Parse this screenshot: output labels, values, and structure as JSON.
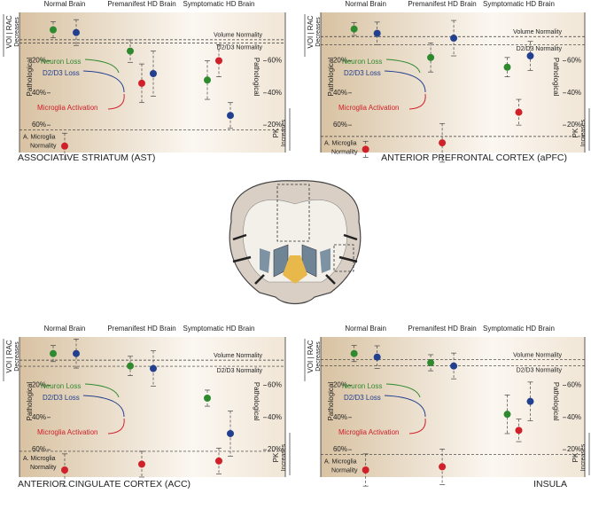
{
  "chart_data": [
    {
      "type": "dot",
      "title": "ASSOCIATIVE STRIATUM (AST)",
      "categories": [
        "Normal Brain",
        "Premanifest HD Brain",
        "Symptomatic HD Brain"
      ],
      "series": [
        {
          "name": "Neuron Loss",
          "color": "#2f8a2f",
          "values": [
            0.8,
            14,
            32
          ],
          "errors": [
            5,
            7,
            12
          ]
        },
        {
          "name": "D2/D3 Loss",
          "color": "#22408f",
          "values": [
            2.5,
            28,
            54
          ],
          "errors": [
            8,
            14,
            8
          ]
        },
        {
          "name": "Microglia Activation",
          "color": "#d0202a",
          "values": [
            73,
            34,
            20
          ],
          "errors": [
            8,
            12,
            10
          ]
        }
      ],
      "reference_lines": [
        {
          "label_lines": [
            "Volume Normality"
          ],
          "value": 7
        },
        {
          "label_lines": [
            "D2/D3 Normality"
          ],
          "value": 9
        },
        {
          "label_lines": [
            "A. Microglia",
            "Normality"
          ],
          "value": 63
        }
      ],
      "ylim": [
        -10,
        77
      ],
      "yticks": [
        {
          "value": 20,
          "label": "20%"
        },
        {
          "value": 40,
          "label": "40%"
        },
        {
          "value": 60,
          "label": "60%"
        }
      ],
      "y2lim": [
        90,
        3
      ],
      "y2ticks": [
        {
          "value": 60,
          "label": "60%"
        },
        {
          "value": 40,
          "label": "40%"
        },
        {
          "value": 20,
          "label": "20%"
        }
      ],
      "left_axis_label": "VOI | RAC",
      "left_axis_sublabel": "Decreases",
      "right_axis_label": "PK",
      "right_axis_sublabel": "Increases",
      "region_label": "Pathological"
    },
    {
      "type": "dot",
      "title": "ANTERIOR PREFRONTAL CORTEX (aPFC)",
      "categories": [
        "Normal Brain",
        "Premanifest HD Brain",
        "Symptomatic HD Brain"
      ],
      "series": [
        {
          "name": "Neuron Loss",
          "color": "#2f8a2f",
          "values": [
            0.3,
            18,
            24
          ],
          "errors": [
            4,
            9,
            6
          ]
        },
        {
          "name": "D2/D3 Loss",
          "color": "#22408f",
          "values": [
            3,
            6,
            17
          ],
          "errors": [
            7,
            11,
            9
          ]
        },
        {
          "name": "Microglia Activation",
          "color": "#d0202a",
          "values": [
            75,
            71,
            52
          ],
          "errors": [
            5,
            12,
            8
          ]
        }
      ],
      "reference_lines": [
        {
          "label_lines": [
            "Volume Normality"
          ],
          "value": 5
        },
        {
          "label_lines": [
            "D2/D3 Normality"
          ],
          "value": 10
        },
        {
          "label_lines": [
            "A. Microglia",
            "Normality"
          ],
          "value": 67
        }
      ],
      "ylim": [
        -10,
        77
      ],
      "yticks": [
        {
          "value": 20,
          "label": "20%"
        },
        {
          "value": 40,
          "label": "40%"
        },
        {
          "value": 60,
          "label": "60%"
        }
      ],
      "y2lim": [
        90,
        3
      ],
      "y2ticks": [
        {
          "value": 60,
          "label": "60%"
        },
        {
          "value": 40,
          "label": "40%"
        },
        {
          "value": 20,
          "label": "20%"
        }
      ],
      "left_axis_label": "VOI | RAC",
      "left_axis_sublabel": "Decreases",
      "right_axis_label": "PK",
      "right_axis_sublabel": "Increases",
      "region_label": "Pathological"
    },
    {
      "type": "dot",
      "title": "ANTERIOR CINGULATE CORTEX (ACC)",
      "categories": [
        "Normal Brain",
        "Premanifest HD Brain",
        "Symptomatic HD Brain"
      ],
      "series": [
        {
          "name": "Neuron Loss",
          "color": "#2f8a2f",
          "values": [
            0.3,
            8,
            28
          ],
          "errors": [
            5,
            6,
            5
          ]
        },
        {
          "name": "D2/D3 Loss",
          "color": "#22408f",
          "values": [
            0.3,
            9.6,
            50
          ],
          "errors": [
            9,
            11,
            14
          ]
        },
        {
          "name": "Microglia Activation",
          "color": "#d0202a",
          "values": [
            72.6,
            69,
            67
          ],
          "errors": [
            10,
            8,
            8
          ]
        }
      ],
      "reference_lines": [
        {
          "label_lines": [
            "Volume Normality"
          ],
          "value": 4.4
        },
        {
          "label_lines": [
            "D2/D3 Normality"
          ],
          "value": 8.2
        },
        {
          "label_lines": [
            "A. Microglia",
            "Normality"
          ],
          "value": 61
        }
      ],
      "ylim": [
        -10,
        77
      ],
      "yticks": [
        {
          "value": 20,
          "label": "20%"
        },
        {
          "value": 40,
          "label": "40%"
        },
        {
          "value": 60,
          "label": "60%"
        }
      ],
      "y2lim": [
        90,
        3
      ],
      "y2ticks": [
        {
          "value": 60,
          "label": "60%"
        },
        {
          "value": 40,
          "label": "40%"
        },
        {
          "value": 20,
          "label": "20%"
        }
      ],
      "left_axis_label": "VOI | RAC",
      "left_axis_sublabel": "Decreases",
      "right_axis_label": "PK",
      "right_axis_sublabel": "Increases",
      "region_label": "Pathological"
    },
    {
      "type": "dot",
      "title": "INSULA",
      "categories": [
        "Normal Brain",
        "Premanifest HD Brain",
        "Symptomatic HD Brain"
      ],
      "series": [
        {
          "name": "Neuron Loss",
          "color": "#2f8a2f",
          "values": [
            0.3,
            6,
            38
          ],
          "errors": [
            5,
            5,
            12
          ]
        },
        {
          "name": "D2/D3 Loss",
          "color": "#22408f",
          "values": [
            2.5,
            8,
            30
          ],
          "errors": [
            7,
            8,
            12
          ]
        },
        {
          "name": "Microglia Activation",
          "color": "#d0202a",
          "values": [
            72.6,
            70.6,
            48
          ],
          "errors": [
            10,
            11,
            7
          ]
        }
      ],
      "reference_lines": [
        {
          "label_lines": [
            "Volume Normality"
          ],
          "value": 4
        },
        {
          "label_lines": [
            "D2/D3 Normality"
          ],
          "value": 8
        },
        {
          "label_lines": [
            "A. Microglia",
            "Normality"
          ],
          "value": 63
        }
      ],
      "ylim": [
        -10,
        77
      ],
      "yticks": [
        {
          "value": 20,
          "label": "20%"
        },
        {
          "value": 40,
          "label": "40%"
        },
        {
          "value": 60,
          "label": "60%"
        }
      ],
      "y2lim": [
        90,
        3
      ],
      "y2ticks": [
        {
          "value": 60,
          "label": "60%"
        },
        {
          "value": 40,
          "label": "40%"
        },
        {
          "value": 20,
          "label": "20%"
        }
      ],
      "left_axis_label": "VOI | RAC",
      "left_axis_sublabel": "Decreases",
      "right_axis_label": "PK",
      "right_axis_sublabel": "Increases",
      "region_label": "Pathological"
    }
  ]
}
